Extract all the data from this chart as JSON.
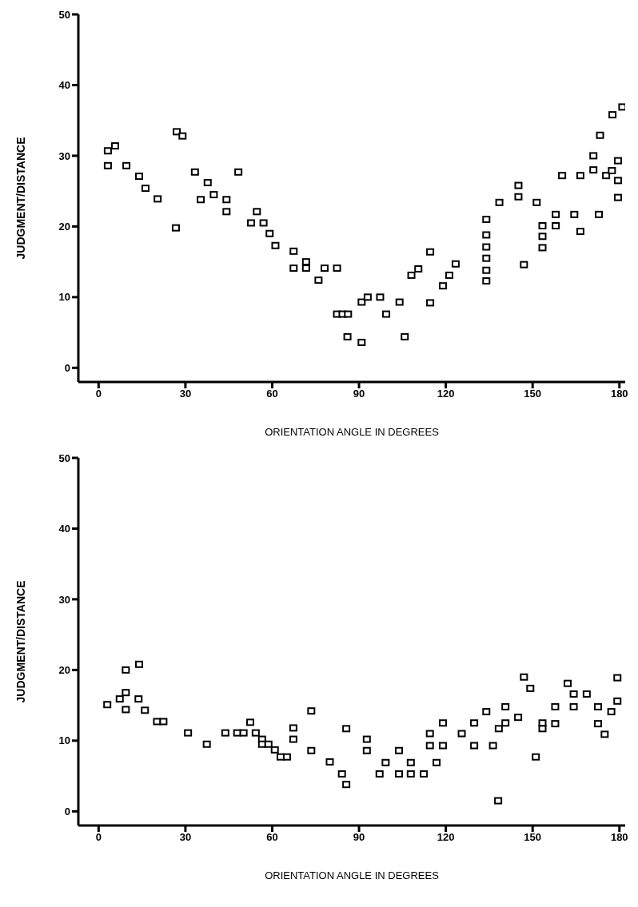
{
  "chart_data": [
    {
      "type": "scatter",
      "xlabel": "ORIENTATION ANGLE IN DEGREES",
      "ylabel": "JUDGMENT/DISTANCE",
      "xlim": [
        -7,
        182
      ],
      "ylim": [
        -2,
        50
      ],
      "xticks": [
        0,
        30,
        60,
        90,
        120,
        150,
        180
      ],
      "yticks": [
        0,
        10,
        20,
        30,
        40,
        50
      ],
      "marker": "square",
      "color": "#000000",
      "x": [
        3.2,
        5.7,
        3.2,
        9.6,
        14.0,
        16.2,
        20.4,
        26.7,
        27.0,
        29.0,
        33.3,
        37.7,
        39.8,
        35.3,
        44.2,
        44.2,
        48.3,
        54.7,
        52.7,
        57.0,
        59.1,
        61.1,
        67.4,
        67.4,
        71.7,
        71.7,
        78.1,
        76.0,
        82.4,
        82.4,
        84.3,
        86.2,
        86.0,
        90.9,
        93.0,
        90.9,
        97.3,
        99.4,
        104.0,
        105.8,
        108.1,
        110.5,
        114.6,
        114.6,
        119.0,
        121.2,
        123.4,
        134.0,
        134.0,
        134.0,
        134.0,
        134.0,
        134.0,
        138.5,
        145.1,
        145.1,
        147.0,
        151.4,
        153.4,
        153.4,
        153.4,
        158.0,
        158.0,
        160.2,
        164.4,
        166.5,
        166.5,
        171.0,
        171.0,
        172.9,
        173.3,
        175.4,
        177.4,
        177.6,
        179.5,
        179.5,
        179.5,
        181.0
      ],
      "values": [
        30.7,
        31.4,
        28.6,
        28.6,
        27.1,
        25.4,
        23.9,
        19.8,
        33.4,
        32.8,
        27.7,
        26.2,
        24.5,
        23.8,
        23.8,
        22.1,
        27.7,
        22.1,
        20.5,
        20.5,
        19.0,
        17.3,
        16.5,
        14.1,
        14.1,
        15.0,
        14.1,
        12.4,
        14.1,
        7.6,
        7.6,
        7.6,
        4.4,
        9.3,
        10.0,
        3.6,
        10.0,
        7.6,
        9.3,
        4.4,
        13.1,
        14.0,
        16.4,
        9.2,
        11.6,
        13.1,
        14.7,
        21.0,
        18.8,
        17.1,
        15.5,
        13.8,
        12.3,
        23.4,
        25.8,
        24.2,
        14.6,
        23.4,
        20.1,
        18.6,
        17.0,
        21.7,
        20.1,
        27.2,
        21.7,
        27.2,
        19.3,
        30.0,
        28.0,
        21.7,
        32.9,
        27.2,
        27.9,
        35.8,
        29.3,
        26.5,
        24.1,
        36.9
      ]
    },
    {
      "type": "scatter",
      "xlabel": "ORIENTATION ANGLE IN DEGREES",
      "ylabel": "JUDGMENT/DISTANCE",
      "xlim": [
        -7,
        182
      ],
      "ylim": [
        -2,
        50
      ],
      "xticks": [
        0,
        30,
        60,
        90,
        120,
        150,
        180
      ],
      "yticks": [
        0,
        10,
        20,
        30,
        40,
        50
      ],
      "marker": "square",
      "color": "#000000",
      "x": [
        3.0,
        7.3,
        9.4,
        9.4,
        9.4,
        14.0,
        13.8,
        16.0,
        20.2,
        22.4,
        30.9,
        37.4,
        43.8,
        47.9,
        50.1,
        52.4,
        54.3,
        56.5,
        56.5,
        58.7,
        60.9,
        62.9,
        65.1,
        67.3,
        67.3,
        73.5,
        73.5,
        79.9,
        84.1,
        85.6,
        85.6,
        92.7,
        92.7,
        97.1,
        99.2,
        103.8,
        103.8,
        107.9,
        107.9,
        112.4,
        114.5,
        114.5,
        116.8,
        119.0,
        119.0,
        125.5,
        129.8,
        129.8,
        134.0,
        136.3,
        138.3,
        140.6,
        140.6,
        138.1,
        145.0,
        147.0,
        149.2,
        151.1,
        153.4,
        153.4,
        157.8,
        157.8,
        162.1,
        164.2,
        164.2,
        168.7,
        172.6,
        172.6,
        174.9,
        177.2,
        179.3,
        179.3
      ],
      "values": [
        15.1,
        15.9,
        20.0,
        16.8,
        14.4,
        20.8,
        15.9,
        14.3,
        12.7,
        12.7,
        11.1,
        9.5,
        11.1,
        11.1,
        11.1,
        12.6,
        11.1,
        10.2,
        9.5,
        9.5,
        8.7,
        7.7,
        7.7,
        11.8,
        10.2,
        14.2,
        8.6,
        7.0,
        5.3,
        3.8,
        11.7,
        10.2,
        8.6,
        5.3,
        6.9,
        8.6,
        5.3,
        6.9,
        5.3,
        5.3,
        11.0,
        9.3,
        6.9,
        12.5,
        9.3,
        11.0,
        12.5,
        9.3,
        14.1,
        9.3,
        11.7,
        14.8,
        12.5,
        1.5,
        13.3,
        19.0,
        17.4,
        7.7,
        12.5,
        11.7,
        14.8,
        12.4,
        18.1,
        16.6,
        14.8,
        16.6,
        14.8,
        12.4,
        10.9,
        14.1,
        18.9,
        15.6
      ]
    }
  ]
}
